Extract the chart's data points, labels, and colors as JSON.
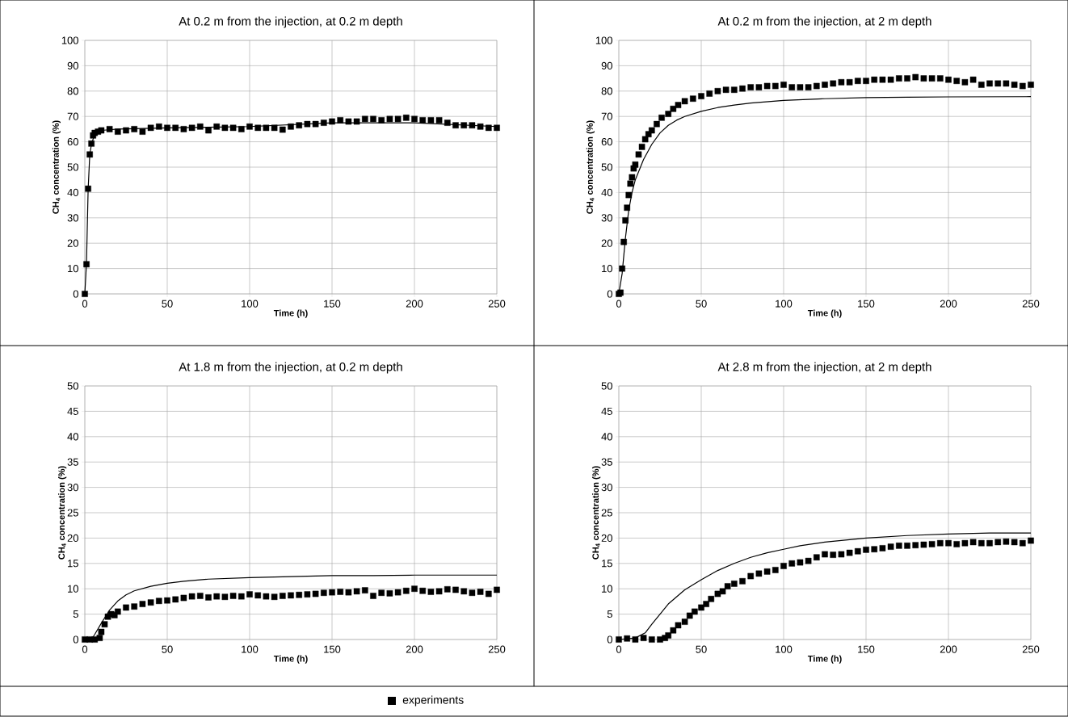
{
  "chart_data": [
    {
      "type": "line",
      "title": "At 0.2 m from the injection, at 0.2 m depth",
      "xlabel": "Time (h)",
      "ylabel": "CH$_{4}$ concentration (%)",
      "xlim": [
        0,
        250
      ],
      "ylim": [
        0,
        100
      ],
      "xticks": [
        0,
        50,
        100,
        150,
        200,
        250
      ],
      "yticks": [
        0,
        10,
        20,
        30,
        40,
        50,
        60,
        70,
        80,
        90,
        100
      ],
      "grid": true,
      "legend": "bottom",
      "series": [
        {
          "name": "experiments",
          "type": "scatter",
          "marker": "square",
          "color": "#000000",
          "x": [
            0,
            1,
            2,
            3,
            4,
            5,
            6,
            8,
            10,
            15,
            20,
            25,
            30,
            35,
            40,
            45,
            50,
            55,
            60,
            65,
            70,
            75,
            80,
            85,
            90,
            95,
            100,
            105,
            110,
            115,
            120,
            125,
            130,
            135,
            140,
            145,
            150,
            155,
            160,
            165,
            170,
            175,
            180,
            185,
            190,
            195,
            200,
            205,
            210,
            215,
            220,
            225,
            230,
            235,
            240,
            245,
            250
          ],
          "values": [
            0,
            11.7,
            41.5,
            55,
            59.3,
            62.5,
            63.5,
            64,
            64.5,
            65,
            64,
            64.5,
            65,
            64,
            65.5,
            66,
            65.5,
            65.5,
            65,
            65.5,
            66,
            64.5,
            66,
            65.5,
            65.5,
            65,
            66,
            65.5,
            65.5,
            65.5,
            64.8,
            66,
            66.5,
            67,
            67,
            67.5,
            68,
            68.5,
            68,
            68,
            69,
            69,
            68.5,
            69,
            69,
            69.5,
            69,
            68.5,
            68.5,
            68.5,
            67.5,
            66.5,
            66.5,
            66.5,
            66,
            65.5,
            65.5
          ]
        },
        {
          "marker": "none",
          "color": "#000000",
          "x": [
            0,
            1,
            2,
            3,
            4,
            6,
            10,
            20,
            50,
            100,
            150,
            200,
            250
          ],
          "values": [
            0,
            12,
            41,
            55,
            59,
            63,
            64.5,
            65,
            65.5,
            66,
            67.5,
            67.5,
            66
          ]
        }
      ]
    },
    {
      "type": "line",
      "title": "At 0.2 m from the injection, at 2 m depth",
      "xlabel": "Time (h)",
      "ylabel": "CH$_{4}$ concentration (%)",
      "xlim": [
        0,
        250
      ],
      "ylim": [
        0,
        100
      ],
      "xticks": [
        0,
        50,
        100,
        150,
        200,
        250
      ],
      "yticks": [
        0,
        10,
        20,
        30,
        40,
        50,
        60,
        70,
        80,
        90,
        100
      ],
      "grid": true,
      "series": [
        {
          "type": "scatter",
          "marker": "square",
          "color": "#000000",
          "x": [
            0,
            1,
            2,
            3,
            4,
            5,
            6,
            7,
            8,
            9,
            10,
            12,
            14,
            16,
            18,
            20,
            23,
            26,
            30,
            33,
            36,
            40,
            45,
            50,
            55,
            60,
            65,
            70,
            75,
            80,
            85,
            90,
            95,
            100,
            105,
            110,
            115,
            120,
            125,
            130,
            135,
            140,
            145,
            150,
            155,
            160,
            165,
            170,
            175,
            180,
            185,
            190,
            195,
            200,
            205,
            210,
            215,
            220,
            225,
            230,
            235,
            240,
            245,
            250
          ],
          "values": [
            0,
            0.5,
            10,
            20.5,
            29,
            34,
            39,
            43.5,
            46,
            49.5,
            51,
            55,
            58,
            61,
            63,
            64.5,
            67,
            69.5,
            71,
            73,
            74.5,
            76,
            77,
            78,
            79,
            80,
            80.5,
            80.5,
            81,
            81.5,
            81.5,
            82,
            82,
            82.5,
            81.5,
            81.5,
            81.5,
            82,
            82.5,
            83,
            83.5,
            83.5,
            84,
            84,
            84.5,
            84.5,
            84.5,
            85,
            85,
            85.5,
            85,
            85,
            85,
            84.5,
            84,
            83.5,
            84.5,
            82.5,
            83,
            83,
            83,
            82.5,
            82,
            82.5
          ]
        },
        {
          "marker": "none",
          "color": "#000000",
          "x": [
            0,
            2,
            4,
            6,
            8,
            10,
            15,
            20,
            25,
            30,
            35,
            40,
            50,
            60,
            70,
            80,
            100,
            125,
            150,
            175,
            200,
            250
          ],
          "values": [
            0,
            8,
            22,
            33,
            40,
            45,
            53,
            59,
            63.5,
            66.5,
            68.5,
            70,
            72,
            73.5,
            74.5,
            75.3,
            76.3,
            77,
            77.4,
            77.6,
            77.7,
            77.8
          ]
        }
      ]
    },
    {
      "type": "line",
      "title": "At 1.8 m from the injection, at 0.2 m depth",
      "xlabel": "Time (h)",
      "ylabel": "CH$_{4}$ concentration (%)",
      "xlim": [
        0,
        250
      ],
      "ylim": [
        0,
        50
      ],
      "xticks": [
        0,
        50,
        100,
        150,
        200,
        250
      ],
      "yticks": [
        0,
        5,
        10,
        15,
        20,
        25,
        30,
        35,
        40,
        45,
        50
      ],
      "grid": true,
      "series": [
        {
          "type": "scatter",
          "marker": "square",
          "color": "#000000",
          "x": [
            0,
            3,
            6,
            9,
            10,
            12,
            14,
            16,
            18,
            20,
            25,
            30,
            35,
            40,
            45,
            50,
            55,
            60,
            65,
            70,
            75,
            80,
            85,
            90,
            95,
            100,
            105,
            110,
            115,
            120,
            125,
            130,
            135,
            140,
            145,
            150,
            155,
            160,
            165,
            170,
            175,
            180,
            185,
            190,
            195,
            200,
            205,
            210,
            215,
            220,
            225,
            230,
            235,
            240,
            245,
            250
          ],
          "values": [
            0,
            0,
            0,
            0.3,
            1.5,
            3,
            4.5,
            5,
            4.8,
            5.5,
            6.3,
            6.5,
            7,
            7.3,
            7.6,
            7.7,
            7.9,
            8.2,
            8.5,
            8.6,
            8.3,
            8.5,
            8.4,
            8.6,
            8.5,
            8.9,
            8.7,
            8.5,
            8.4,
            8.6,
            8.7,
            8.8,
            8.9,
            9,
            9.2,
            9.3,
            9.4,
            9.3,
            9.5,
            9.7,
            8.6,
            9.2,
            9.1,
            9.3,
            9.6,
            10,
            9.6,
            9.4,
            9.5,
            9.9,
            9.8,
            9.5,
            9.2,
            9.4,
            9,
            9.8
          ]
        },
        {
          "marker": "none",
          "color": "#000000",
          "x": [
            0,
            4,
            6,
            10,
            15,
            20,
            25,
            30,
            40,
            50,
            60,
            75,
            100,
            125,
            150,
            175,
            200,
            250
          ],
          "values": [
            0,
            0,
            1,
            3.2,
            5.8,
            7.6,
            8.8,
            9.6,
            10.5,
            11.1,
            11.5,
            11.9,
            12.2,
            12.4,
            12.6,
            12.6,
            12.7,
            12.7
          ]
        }
      ]
    },
    {
      "type": "line",
      "title": "At 2.8 m from the injection, at 2 m depth",
      "xlabel": "Time (h)",
      "ylabel": "CH$_{4}$ concentration (%)",
      "xlim": [
        0,
        250
      ],
      "ylim": [
        0,
        50
      ],
      "xticks": [
        0,
        50,
        100,
        150,
        200,
        250
      ],
      "yticks": [
        0,
        5,
        10,
        15,
        20,
        25,
        30,
        35,
        40,
        45,
        50
      ],
      "grid": true,
      "series": [
        {
          "type": "scatter",
          "marker": "square",
          "color": "#000000",
          "x": [
            0,
            5,
            10,
            15,
            20,
            25,
            28,
            30,
            33,
            36,
            40,
            43,
            46,
            50,
            53,
            56,
            60,
            63,
            66,
            70,
            75,
            80,
            85,
            90,
            95,
            100,
            105,
            110,
            115,
            120,
            125,
            130,
            135,
            140,
            145,
            150,
            155,
            160,
            165,
            170,
            175,
            180,
            185,
            190,
            195,
            200,
            205,
            210,
            215,
            220,
            225,
            230,
            235,
            240,
            245,
            250
          ],
          "values": [
            0,
            0.2,
            0,
            0.3,
            0,
            0,
            0.3,
            0.8,
            1.8,
            2.8,
            3.5,
            4.7,
            5.5,
            6.3,
            7,
            8,
            9,
            9.5,
            10.5,
            11,
            11.5,
            12.5,
            13,
            13.4,
            13.7,
            14.5,
            15,
            15.2,
            15.5,
            16.2,
            16.8,
            16.7,
            16.8,
            17.1,
            17.4,
            17.7,
            17.8,
            18,
            18.3,
            18.5,
            18.5,
            18.6,
            18.7,
            18.8,
            19,
            19,
            18.8,
            19,
            19.2,
            19,
            19,
            19.2,
            19.3,
            19.2,
            19,
            19.5
          ]
        },
        {
          "marker": "none",
          "color": "#000000",
          "x": [
            0,
            10,
            16,
            20,
            25,
            30,
            40,
            50,
            60,
            70,
            80,
            90,
            100,
            110,
            125,
            150,
            175,
            200,
            225,
            250
          ],
          "values": [
            0,
            0.3,
            1.3,
            3,
            5,
            7,
            9.8,
            11.8,
            13.6,
            15,
            16.2,
            17.1,
            17.8,
            18.5,
            19.2,
            20,
            20.5,
            20.8,
            21,
            21
          ]
        }
      ]
    }
  ]
}
